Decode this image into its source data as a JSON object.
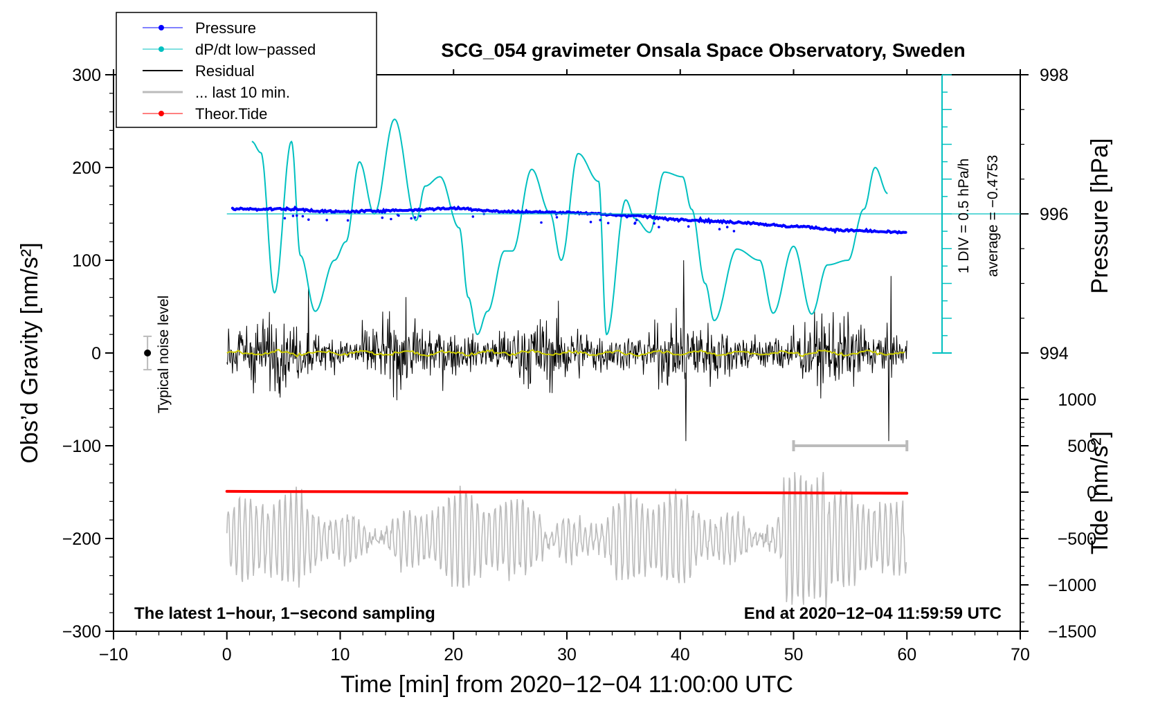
{
  "chart_data": {
    "type": "line",
    "title": "SCG_054 gravimeter Onsala Space Observatory, Sweden",
    "xlabel": "Time [min] from 2020−12−04 11:00:00 UTC",
    "ylabel_left": "Obs’d Gravity [nm/s²]",
    "ylabel_pressure": "Pressure [hPa]",
    "ylabel_tide": "Tide [nm/s²]",
    "xlim": [
      -10,
      70
    ],
    "ylim": [
      -300,
      300
    ],
    "xticks": [
      "−10",
      "0",
      "10",
      "20",
      "30",
      "40",
      "50",
      "60",
      "70"
    ],
    "yticks": [
      "300",
      "200",
      "100",
      "0",
      "−100",
      "−200",
      "−300"
    ],
    "pressure_axis": {
      "ticks": [
        "998",
        "996",
        "994"
      ],
      "values": [
        998,
        996,
        994
      ],
      "gravity_at_996": 150,
      "nm_per_hpa": 75
    },
    "tide_axis": {
      "ticks": [
        "1000",
        "500",
        "0",
        "−500",
        "−1000",
        "−1500"
      ],
      "values": [
        1000,
        500,
        0,
        -500,
        -1000,
        -1500
      ],
      "gravity_at_zero": -150,
      "nm_per_unit": 0.1
    },
    "legend": [
      {
        "label": "Pressure",
        "color": "#0000ff"
      },
      {
        "label": "dP/dt low−passed",
        "color": "#00c0c0"
      },
      {
        "label": "Residual",
        "color": "#000000"
      },
      {
        "label": "... last 10 min.",
        "color": "#bbbbbb"
      },
      {
        "label": "Theor.Tide",
        "color": "#ff0000"
      }
    ],
    "dpdt_scale": {
      "label": "1 DIV = 0.5 hPa/h",
      "average": "average = −0.4753",
      "axis_min": 0,
      "axis_max": 300
    },
    "noise_label": "Typical noise level",
    "noise_bar": {
      "center": 0,
      "half_range": 18,
      "x_min": -7
    },
    "last10_bracket": {
      "x_start": 50,
      "x_end": 60,
      "y": -100
    },
    "footer_left": "The latest 1−hour, 1−second sampling",
    "footer_right": "End at 2020−12−04 11:59:59 UTC",
    "series": [
      {
        "name": "dP/dt low−passed",
        "color": "#00c0c0",
        "x": [
          2.2,
          3.0,
          4.2,
          5.7,
          6.5,
          7.8,
          9.5,
          10.5,
          11.7,
          13.0,
          14.8,
          16.7,
          17.5,
          18.8,
          20.5,
          21.3,
          22.1,
          23.0,
          24.5,
          25.2,
          26.9,
          28.5,
          29.5,
          31.0,
          32.8,
          33.5,
          35.2,
          36.0,
          37.3,
          38.6,
          40.2,
          41.0,
          42.2,
          43.0,
          45.0,
          47.0,
          48.2,
          50.0,
          51.6,
          53.0,
          54.8,
          56.2,
          57.2,
          58.3
        ],
        "values": [
          228,
          216,
          65,
          228,
          105,
          45,
          100,
          120,
          206,
          150,
          252,
          143,
          180,
          190,
          135,
          60,
          20,
          45,
          110,
          110,
          198,
          151,
          100,
          215,
          185,
          20,
          165,
          145,
          130,
          195,
          190,
          155,
          75,
          35,
          112,
          100,
          43,
          115,
          42,
          95,
          100,
          155,
          200,
          172
        ]
      },
      {
        "name": "Pressure",
        "color": "#0000ff",
        "unit": "hPa",
        "x": [
          0.5,
          5,
          10,
          15,
          20,
          25,
          30,
          35,
          40,
          45,
          50,
          55,
          60
        ],
        "values": [
          996.07,
          996.07,
          996.03,
          996.05,
          996.08,
          996.03,
          996.02,
          995.98,
          995.92,
          995.88,
          995.82,
          995.76,
          995.73
        ]
      },
      {
        "name": "Residual",
        "color": "#000000",
        "x": [
          0,
          60
        ],
        "values": [
          0,
          0
        ],
        "range": [
          -95,
          100
        ],
        "notable": [
          {
            "x": 7.2,
            "y": 70
          },
          {
            "x": 40.3,
            "y": 100
          },
          {
            "x": 40.5,
            "y": -100
          },
          {
            "x": 58.4,
            "y": -98
          },
          {
            "x": 58.6,
            "y": 83
          }
        ]
      },
      {
        "name": "Residual smoothed",
        "color": "#cccc00",
        "x": [
          0,
          60
        ],
        "values": [
          0,
          0
        ]
      },
      {
        "name": "... last 10 min.",
        "color": "#bbbbbb",
        "unit": "nm/s² (shown with ×10 gain around −200)",
        "x": [
          0,
          60
        ],
        "baseline": -200,
        "range": [
          -275,
          -98
        ]
      },
      {
        "name": "Theor.Tide",
        "color": "#ff0000",
        "unit": "nm/s²",
        "x": [
          0,
          60
        ],
        "values": [
          8,
          -12
        ]
      }
    ]
  }
}
